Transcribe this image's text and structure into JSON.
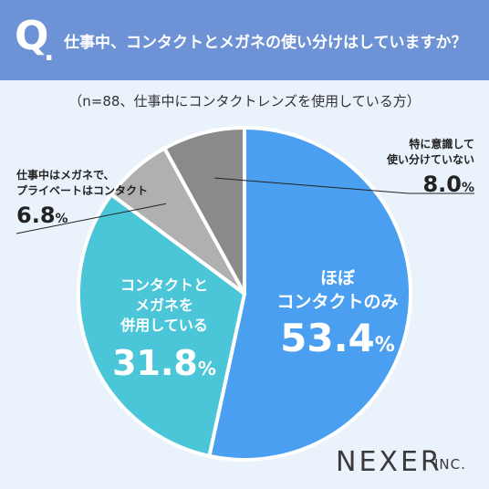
{
  "header": {
    "q_letter": "Q",
    "q_dot": ".",
    "question": "仕事中、コンタクトとメガネの使い分けはしていますか？"
  },
  "subtitle": "（n=88、仕事中にコンタクトレンズを使用している方）",
  "colors": {
    "header": "#6d92d6",
    "background": "#eaf3fb",
    "contact_only": "#4a9ff0",
    "both": "#4bc6d8",
    "work_glasses": "#b0b0b0",
    "no_switch": "#8a8a8a"
  },
  "chart_data": {
    "type": "pie",
    "slices": [
      {
        "key": "contact_only",
        "label_lines": [
          "ほぼ",
          "コンタクトのみ"
        ],
        "value": 53.4,
        "display": "53.4",
        "unit": "%",
        "color": "#4a9ff0"
      },
      {
        "key": "both",
        "label_lines": [
          "コンタクトと",
          "メガネを",
          "併用している"
        ],
        "value": 31.8,
        "display": "31.8",
        "unit": "%",
        "color": "#4bc6d8"
      },
      {
        "key": "work_glasses",
        "label_lines": [
          "仕事中はメガネで、",
          "プライベートはコンタクト"
        ],
        "value": 6.8,
        "display": "6.8",
        "unit": "%",
        "color": "#b0b0b0"
      },
      {
        "key": "no_switch",
        "label_lines": [
          "特に意識して",
          "使い分けていない"
        ],
        "value": 8.0,
        "display": "8.0",
        "unit": "%",
        "color": "#8a8a8a"
      }
    ]
  },
  "brand": {
    "name": "NEXER",
    "suffix": "INC."
  }
}
